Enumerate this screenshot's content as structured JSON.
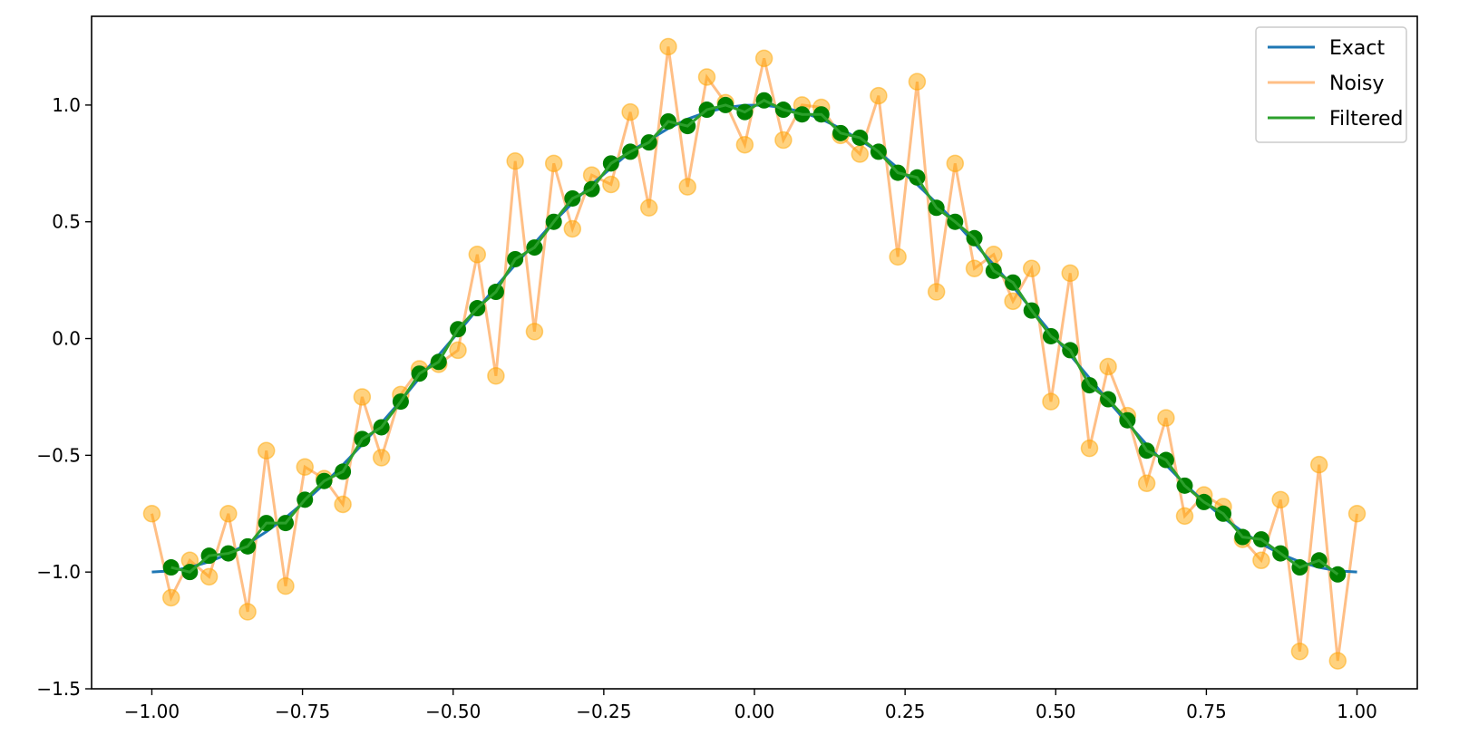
{
  "chart_data": {
    "type": "line",
    "xlim": [
      -1.1,
      1.1
    ],
    "ylim": [
      -1.5,
      1.38
    ],
    "xticks": [
      -1.0,
      -0.75,
      -0.5,
      -0.25,
      0.0,
      0.25,
      0.5,
      0.75,
      1.0
    ],
    "xtick_labels": [
      "−1.00",
      "−0.75",
      "−0.50",
      "−0.25",
      "0.00",
      "0.25",
      "0.50",
      "0.75",
      "1.00"
    ],
    "yticks": [
      -1.5,
      -1.0,
      -0.5,
      0.0,
      0.5,
      1.0
    ],
    "ytick_labels": [
      "−1.5",
      "−1.0",
      "−0.5",
      "0.0",
      "0.5",
      "1.0"
    ],
    "grid": false,
    "legend_position": "top-right",
    "x": [
      -1.0,
      -0.968,
      -0.937,
      -0.905,
      -0.873,
      -0.841,
      -0.81,
      -0.778,
      -0.746,
      -0.714,
      -0.683,
      -0.651,
      -0.619,
      -0.587,
      -0.556,
      -0.524,
      -0.492,
      -0.46,
      -0.429,
      -0.397,
      -0.365,
      -0.333,
      -0.302,
      -0.27,
      -0.238,
      -0.206,
      -0.175,
      -0.143,
      -0.111,
      -0.079,
      -0.048,
      -0.016,
      0.016,
      0.048,
      0.079,
      0.111,
      0.143,
      0.175,
      0.206,
      0.238,
      0.27,
      0.302,
      0.333,
      0.365,
      0.397,
      0.429,
      0.46,
      0.492,
      0.524,
      0.556,
      0.587,
      0.619,
      0.651,
      0.683,
      0.714,
      0.746,
      0.778,
      0.81,
      0.841,
      0.873,
      0.905,
      0.937,
      0.968,
      1.0
    ],
    "series": [
      {
        "name": "Exact",
        "color": "#1f77b4",
        "values": [
          -1.0,
          -0.995,
          -0.98,
          -0.956,
          -0.922,
          -0.879,
          -0.827,
          -0.767,
          -0.698,
          -0.623,
          -0.541,
          -0.454,
          -0.362,
          -0.267,
          -0.169,
          -0.071,
          0.025,
          0.125,
          0.222,
          0.316,
          0.408,
          0.5,
          0.58,
          0.66,
          0.73,
          0.8,
          0.85,
          0.9,
          0.94,
          0.97,
          0.989,
          0.999,
          0.999,
          0.989,
          0.97,
          0.94,
          0.9,
          0.85,
          0.8,
          0.73,
          0.66,
          0.58,
          0.5,
          0.408,
          0.316,
          0.222,
          0.125,
          0.025,
          -0.071,
          -0.169,
          -0.267,
          -0.362,
          -0.454,
          -0.541,
          -0.623,
          -0.698,
          -0.767,
          -0.827,
          -0.879,
          -0.922,
          -0.956,
          -0.98,
          -0.995,
          -1.0
        ]
      },
      {
        "name": "Noisy",
        "color": "#ff7f0e",
        "values": [
          -0.75,
          -1.11,
          -0.95,
          -1.02,
          -0.75,
          -1.17,
          -0.48,
          -1.06,
          -0.55,
          -0.6,
          -0.71,
          -0.25,
          -0.51,
          -0.24,
          -0.13,
          -0.11,
          -0.05,
          0.36,
          -0.16,
          0.76,
          0.03,
          0.75,
          0.47,
          0.7,
          0.66,
          0.97,
          0.56,
          1.25,
          0.65,
          1.12,
          1.01,
          0.83,
          1.2,
          0.85,
          1.0,
          0.99,
          0.87,
          0.79,
          1.04,
          0.35,
          1.1,
          0.2,
          0.75,
          0.3,
          0.36,
          0.16,
          0.3,
          -0.27,
          0.28,
          -0.47,
          -0.12,
          -0.33,
          -0.62,
          -0.34,
          -0.76,
          -0.67,
          -0.72,
          -0.86,
          -0.95,
          -0.69,
          -1.34,
          -0.54,
          -1.38,
          -0.75
        ]
      },
      {
        "name": "Filtered",
        "color": "#2ca02c",
        "values": [
          null,
          -0.98,
          -1.0,
          -0.93,
          -0.92,
          -0.89,
          -0.79,
          -0.79,
          -0.69,
          -0.61,
          -0.57,
          -0.43,
          -0.38,
          -0.27,
          -0.15,
          -0.1,
          0.04,
          0.13,
          0.2,
          0.34,
          0.39,
          0.5,
          0.6,
          0.64,
          0.75,
          0.8,
          0.84,
          0.93,
          0.91,
          0.98,
          1.0,
          0.97,
          1.02,
          0.98,
          0.96,
          0.96,
          0.88,
          0.86,
          0.8,
          0.71,
          0.69,
          0.56,
          0.5,
          0.43,
          0.29,
          0.24,
          0.12,
          0.01,
          -0.05,
          -0.2,
          -0.26,
          -0.35,
          -0.48,
          -0.52,
          -0.63,
          -0.7,
          -0.75,
          -0.85,
          -0.86,
          -0.92,
          -0.98,
          -0.95,
          -1.01,
          null
        ]
      }
    ]
  }
}
